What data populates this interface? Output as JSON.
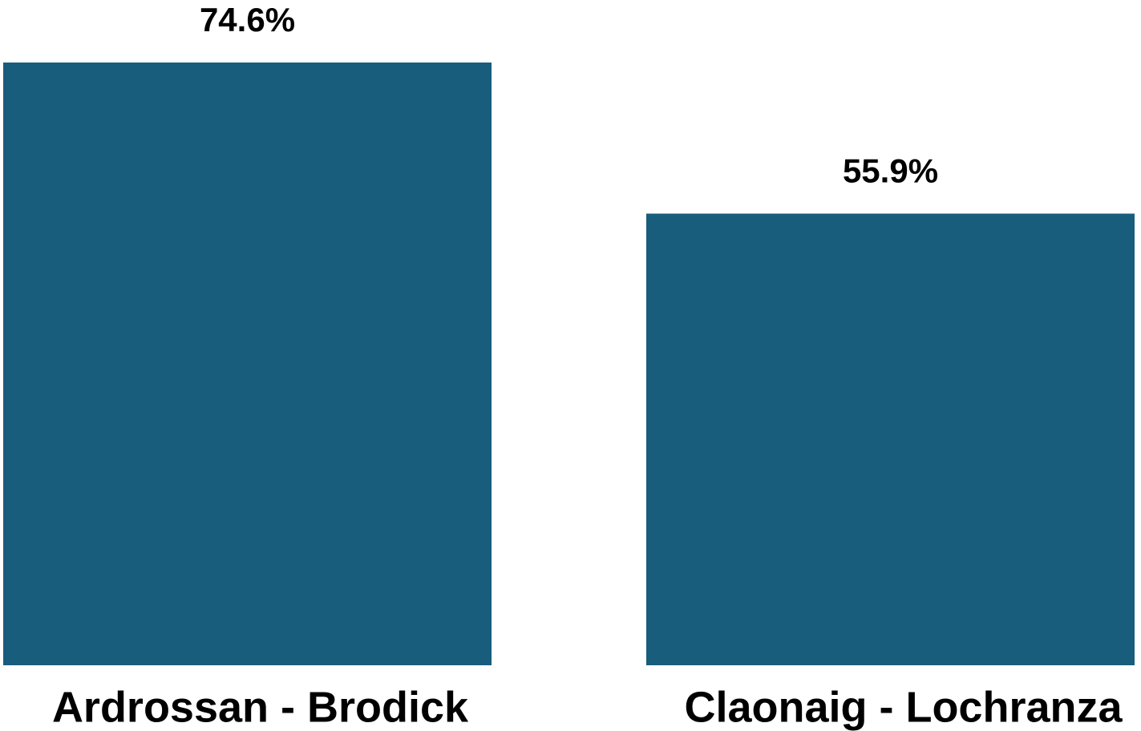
{
  "chart_data": {
    "type": "bar",
    "categories": [
      "Ardrossan - Brodick",
      "Claonaig - Lochranza"
    ],
    "values": [
      74.6,
      55.9
    ],
    "value_labels": [
      "74.6%",
      "55.9%"
    ],
    "color": "#185d7c"
  }
}
